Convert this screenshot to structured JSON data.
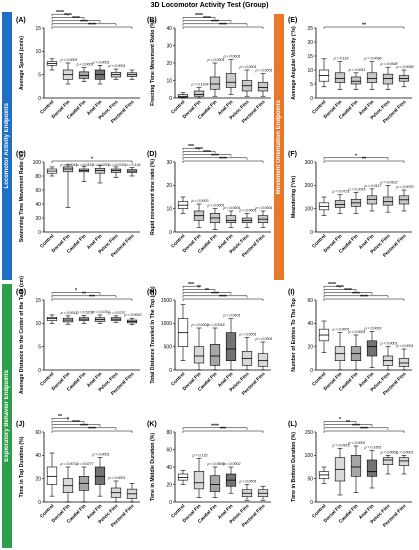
{
  "title": "3D Locomotor Activity Test (Group)",
  "sections": {
    "locomotor": {
      "label": "Locomotor Activity Endpoints",
      "color": "#1f6fc5"
    },
    "movement": {
      "label": "Movement Orientation Endpoints",
      "color": "#e8782a"
    },
    "exploratory": {
      "label": "Exploratory Behavior Endpoints",
      "color": "#2e9e4f"
    }
  },
  "categories": [
    "Control",
    "Dorsal Fin",
    "Caudal Fin",
    "Anal Fin",
    "Pelvic Fins",
    "Pectoral Fins"
  ],
  "chart_data": [
    {
      "id": "A",
      "type": "box",
      "panel_label": "(A)",
      "ylabel": "Average Speed (cm/s)",
      "ylim": [
        0,
        15
      ],
      "yticks": [
        0,
        5,
        10,
        15
      ],
      "plot": "box",
      "series": [
        {
          "whislo": 6,
          "q1": 7,
          "med": 7.4,
          "q3": 7.8,
          "whishi": 8.4
        },
        {
          "whislo": 3,
          "q1": 4,
          "med": 5,
          "q3": 6,
          "whishi": 7.5
        },
        {
          "whislo": 3.5,
          "q1": 4.2,
          "med": 4.8,
          "q3": 5.6,
          "whishi": 6.5
        },
        {
          "whislo": 3,
          "q1": 4,
          "med": 5,
          "q3": 6,
          "whishi": 7
        },
        {
          "whislo": 4,
          "q1": 4.5,
          "med": 5,
          "q3": 5.5,
          "whishi": 6.2
        },
        {
          "whislo": 4,
          "q1": 4.6,
          "med": 5,
          "q3": 5.4,
          "whishi": 6
        }
      ],
      "annotations": [
        "****",
        "****",
        "****",
        "****",
        "****",
        "p < 0.0001",
        "p < 0.0001",
        "p < 0.0001",
        "p < 0.0001"
      ]
    },
    {
      "id": "B",
      "type": "box",
      "panel_label": "(B)",
      "ylabel": "Freezing Time Movement Ratio (%)",
      "ylim": [
        0,
        40
      ],
      "yticks": [
        0,
        10,
        20,
        30,
        40
      ],
      "plot": "box",
      "series": [
        {
          "whislo": 0,
          "q1": 0.5,
          "med": 1,
          "q3": 2,
          "whishi": 3
        },
        {
          "whislo": 0,
          "q1": 1,
          "med": 2,
          "q3": 4,
          "whishi": 6
        },
        {
          "whislo": 1,
          "q1": 5,
          "med": 8,
          "q3": 12,
          "whishi": 20
        },
        {
          "whislo": 2,
          "q1": 6,
          "med": 9,
          "q3": 14,
          "whishi": 22
        },
        {
          "whislo": 1,
          "q1": 4,
          "med": 7,
          "q3": 10,
          "whishi": 16
        },
        {
          "whislo": 1,
          "q1": 4,
          "med": 6,
          "q3": 9,
          "whishi": 14
        }
      ],
      "annotations": [
        "****",
        "****",
        "****",
        "****",
        "p = 0.1334",
        "p < 0.0001",
        "p < 0.0001",
        "p < 0.0001",
        "p < 0.0001"
      ]
    },
    {
      "id": "C",
      "type": "box",
      "panel_label": "(C)",
      "ylabel": "Swimming Time Movement Ratio (%)",
      "ylim": [
        0,
        100
      ],
      "yticks": [
        0,
        20,
        40,
        60,
        80,
        100
      ],
      "plot": "box",
      "series": [
        {
          "whislo": 80,
          "q1": 84,
          "med": 87,
          "q3": 90,
          "whishi": 93
        },
        {
          "whislo": 35,
          "q1": 86,
          "med": 90,
          "q3": 93,
          "whishi": 96
        },
        {
          "whislo": 72,
          "q1": 86,
          "med": 88,
          "q3": 90,
          "whishi": 94
        },
        {
          "whislo": 70,
          "q1": 84,
          "med": 88,
          "q3": 91,
          "whishi": 95
        },
        {
          "whislo": 78,
          "q1": 85,
          "med": 88,
          "q3": 90,
          "whishi": 93
        },
        {
          "whislo": 80,
          "q1": 85,
          "med": 87,
          "q3": 89,
          "whishi": 92
        }
      ],
      "annotations": [
        "*",
        "p = 0.0041",
        "p = 0.0157",
        "p = 0.0357",
        "p = 0.0742",
        "p = 0.124"
      ]
    },
    {
      "id": "D",
      "type": "box",
      "panel_label": "(D)",
      "ylabel": "Rapid movement time ratio (%)",
      "ylim": [
        0,
        30
      ],
      "yticks": [
        0,
        10,
        20,
        30
      ],
      "plot": "box",
      "series": [
        {
          "whislo": 8,
          "q1": 10,
          "med": 11.5,
          "q3": 13,
          "whishi": 15
        },
        {
          "whislo": 2,
          "q1": 5,
          "med": 7,
          "q3": 9,
          "whishi": 12
        },
        {
          "whislo": 1,
          "q1": 4,
          "med": 6,
          "q3": 8,
          "whishi": 10
        },
        {
          "whislo": 2,
          "q1": 4,
          "med": 5,
          "q3": 7,
          "whishi": 9
        },
        {
          "whislo": 2,
          "q1": 4,
          "med": 5,
          "q3": 6,
          "whishi": 8
        },
        {
          "whislo": 2,
          "q1": 4,
          "med": 5.5,
          "q3": 7,
          "whishi": 9
        }
      ],
      "annotations": [
        "****",
        "****",
        "****",
        "****",
        "***",
        "p = 0.0003",
        "p < 0.0001",
        "p < 0.0001",
        "p < 0.0001",
        "p < 0.0001"
      ]
    },
    {
      "id": "E",
      "type": "box",
      "panel_label": "(E)",
      "ylabel": "Average Angular Velocity (°/s)",
      "ylim": [
        0,
        25
      ],
      "yticks": [
        0,
        5,
        10,
        15,
        20,
        25
      ],
      "plot": "box",
      "series": [
        {
          "whislo": 4,
          "q1": 6,
          "med": 8,
          "q3": 10,
          "whishi": 14
        },
        {
          "whislo": 3,
          "q1": 5.5,
          "med": 7,
          "q3": 9,
          "whishi": 13
        },
        {
          "whislo": 3,
          "q1": 5,
          "med": 6,
          "q3": 7.5,
          "whishi": 9
        },
        {
          "whislo": 3,
          "q1": 5.5,
          "med": 7,
          "q3": 9,
          "whishi": 13
        },
        {
          "whislo": 3,
          "q1": 5,
          "med": 7,
          "q3": 8.5,
          "whishi": 11
        },
        {
          "whislo": 4,
          "q1": 6,
          "med": 7,
          "q3": 8,
          "whishi": 10
        }
      ],
      "annotations": [
        "**",
        "p = 0.119",
        "p = 0.0011",
        "p = 0.0096",
        "p = 0.0548",
        "p = 0.0095"
      ]
    },
    {
      "id": "F",
      "type": "box",
      "panel_label": "(F)",
      "ylabel": "Meandering (°/m)",
      "ylim": [
        0,
        300
      ],
      "yticks": [
        0,
        100,
        200,
        300
      ],
      "plot": "box",
      "series": [
        {
          "whislo": 70,
          "q1": 95,
          "med": 110,
          "q3": 125,
          "whishi": 150
        },
        {
          "whislo": 80,
          "q1": 105,
          "med": 118,
          "q3": 135,
          "whishi": 160
        },
        {
          "whislo": 80,
          "q1": 110,
          "med": 125,
          "q3": 140,
          "whishi": 170
        },
        {
          "whislo": 90,
          "q1": 120,
          "med": 140,
          "q3": 155,
          "whishi": 185
        },
        {
          "whislo": 85,
          "q1": 115,
          "med": 130,
          "q3": 150,
          "whishi": 200
        },
        {
          "whislo": 90,
          "q1": 120,
          "med": 138,
          "q3": 155,
          "whishi": 180
        }
      ],
      "annotations": [
        "**",
        "*",
        "p = 0.0721",
        "p = 0.2016",
        "p = 0.0117",
        "p = 0.0422",
        "p = 0.0070"
      ]
    },
    {
      "id": "G",
      "type": "box",
      "panel_label": "(G)",
      "ylabel": "Average Distance to the Center of the Tank (cm)",
      "ylim": [
        0,
        15
      ],
      "yticks": [
        0,
        5,
        10,
        15
      ],
      "plot": "box",
      "series": [
        {
          "whislo": 10,
          "q1": 10.6,
          "med": 11,
          "q3": 11.3,
          "whishi": 11.8
        },
        {
          "whislo": 9.8,
          "q1": 10.3,
          "med": 10.7,
          "q3": 11.1,
          "whishi": 11.6
        },
        {
          "whislo": 10,
          "q1": 10.6,
          "med": 10.9,
          "q3": 11.2,
          "whishi": 11.7
        },
        {
          "whislo": 10,
          "q1": 10.4,
          "med": 10.8,
          "q3": 11.2,
          "whishi": 11.8
        },
        {
          "whislo": 10.2,
          "q1": 10.6,
          "med": 10.9,
          "q3": 11.2,
          "whishi": 11.6
        },
        {
          "whislo": 9.7,
          "q1": 10.1,
          "med": 10.4,
          "q3": 10.7,
          "whishi": 11.1
        }
      ],
      "annotations": [
        "***",
        "**",
        "*",
        "p = 0.0011",
        "p = 0.5201",
        "p = 0.1019",
        "p = 0.5737",
        "p = 0.0002"
      ]
    },
    {
      "id": "H",
      "type": "bar_range",
      "panel_label": "(H)",
      "ylabel": "Total Distance Traveled In The Top (cm)",
      "ylim": [
        0,
        1500
      ],
      "yticks": [
        0,
        500,
        1000,
        1500
      ],
      "plot": "box",
      "series": [
        {
          "whislo": 200,
          "q1": 500,
          "med": 800,
          "q3": 1100,
          "whishi": 1400
        },
        {
          "whislo": 0,
          "q1": 150,
          "med": 300,
          "q3": 500,
          "whishi": 900
        },
        {
          "whislo": 0,
          "q1": 100,
          "med": 300,
          "q3": 550,
          "whishi": 900
        },
        {
          "whislo": 0,
          "q1": 200,
          "med": 450,
          "q3": 800,
          "whishi": 1100
        },
        {
          "whislo": 0,
          "q1": 100,
          "med": 250,
          "q3": 400,
          "whishi": 700
        },
        {
          "whislo": 0,
          "q1": 80,
          "med": 200,
          "q3": 350,
          "whishi": 600
        }
      ],
      "annotations": [
        "****",
        "****",
        "**",
        "**",
        "***",
        "p = 0.0003",
        "p = 0.0018",
        "p = 0.0001",
        "p < 0.0001",
        "p < 0.0001"
      ]
    },
    {
      "id": "I",
      "type": "bar_range",
      "panel_label": "(I)",
      "ylabel": "Number of Entries To The Top",
      "ylim": [
        0,
        60
      ],
      "yticks": [
        0,
        20,
        40,
        60
      ],
      "plot": "box",
      "series": [
        {
          "whislo": 15,
          "q1": 25,
          "med": 30,
          "q3": 35,
          "whishi": 42
        },
        {
          "whislo": 0,
          "q1": 8,
          "med": 14,
          "q3": 20,
          "whishi": 32
        },
        {
          "whislo": 0,
          "q1": 8,
          "med": 14,
          "q3": 20,
          "whishi": 30
        },
        {
          "whislo": 2,
          "q1": 12,
          "med": 20,
          "q3": 25,
          "whishi": 33
        },
        {
          "whislo": 0,
          "q1": 4,
          "med": 8,
          "q3": 12,
          "whishi": 20
        },
        {
          "whislo": 0,
          "q1": 3,
          "med": 6,
          "q3": 10,
          "whishi": 18
        }
      ],
      "annotations": [
        "****",
        "****",
        "****",
        "****",
        "****",
        "p < 0.0001",
        "p < 0.0001",
        "p = 0.0003",
        "p < 0.0001",
        "p < 0.0001"
      ]
    },
    {
      "id": "J",
      "type": "bar_range",
      "panel_label": "(J)",
      "ylabel": "Time in Top Duration (%)",
      "ylim": [
        0,
        60
      ],
      "yticks": [
        0,
        20,
        40,
        60
      ],
      "plot": "box",
      "series": [
        {
          "whislo": 5,
          "q1": 15,
          "med": 22,
          "q3": 30,
          "whishi": 42
        },
        {
          "whislo": 0,
          "q1": 8,
          "med": 14,
          "q3": 20,
          "whishi": 30
        },
        {
          "whislo": 0,
          "q1": 10,
          "med": 16,
          "q3": 22,
          "whishi": 30
        },
        {
          "whislo": 5,
          "q1": 15,
          "med": 22,
          "q3": 30,
          "whishi": 38
        },
        {
          "whislo": 0,
          "q1": 4,
          "med": 8,
          "q3": 12,
          "whishi": 18
        },
        {
          "whislo": 0,
          "q1": 3,
          "med": 7,
          "q3": 11,
          "whishi": 16
        }
      ],
      "annotations": [
        "****",
        "****",
        "****",
        "*",
        "**",
        "p = 0.0073",
        "p = 0.0277",
        "p < 0.0001",
        "p < 0.0001"
      ]
    },
    {
      "id": "K",
      "type": "bar_range",
      "panel_label": "(K)",
      "ylabel": "Time in Middle Duration (%)",
      "ylim": [
        0,
        80
      ],
      "yticks": [
        0,
        20,
        40,
        60,
        80
      ],
      "plot": "box",
      "series": [
        {
          "whislo": 20,
          "q1": 25,
          "med": 28,
          "q3": 32,
          "whishi": 36
        },
        {
          "whislo": 5,
          "q1": 15,
          "med": 22,
          "q3": 35,
          "whishi": 50
        },
        {
          "whislo": 5,
          "q1": 12,
          "med": 20,
          "q3": 30,
          "whishi": 40
        },
        {
          "whislo": 10,
          "q1": 18,
          "med": 25,
          "q3": 32,
          "whishi": 40
        },
        {
          "whislo": 2,
          "q1": 6,
          "med": 10,
          "q3": 14,
          "whishi": 20
        },
        {
          "whislo": 2,
          "q1": 6,
          "med": 10,
          "q3": 14,
          "whishi": 18
        }
      ],
      "annotations": [
        "***",
        "****",
        "p = 0.132",
        "p = 0.5665",
        "p = 0.0002",
        "p < 0.0001"
      ]
    },
    {
      "id": "L",
      "type": "bar_range",
      "panel_label": "(L)",
      "ylabel": "Time in Bottom Duration (%)",
      "ylim": [
        0,
        150
      ],
      "yticks": [
        0,
        50,
        100,
        150
      ],
      "plot": "box",
      "series": [
        {
          "whislo": 40,
          "q1": 50,
          "med": 58,
          "q3": 65,
          "whishi": 75
        },
        {
          "whislo": 15,
          "q1": 45,
          "med": 70,
          "q3": 95,
          "whishi": 115
        },
        {
          "whislo": 20,
          "q1": 55,
          "med": 75,
          "q3": 100,
          "whishi": 120
        },
        {
          "whislo": 30,
          "q1": 55,
          "med": 65,
          "q3": 90,
          "whishi": 110
        },
        {
          "whislo": 60,
          "q1": 80,
          "med": 90,
          "q3": 95,
          "whishi": 100
        },
        {
          "whislo": 60,
          "q1": 78,
          "med": 88,
          "q3": 95,
          "whishi": 100
        }
      ],
      "annotations": [
        "****",
        "****",
        "**",
        "*",
        "p = 0.0415",
        "p < 0.0001",
        "p = 0.1601",
        "p < 0.0001",
        "p < 0.0001"
      ]
    }
  ],
  "colors": {
    "box_white": "#ffffff",
    "box_light": "#d9d9d9",
    "box_gray": "#a6a6a6",
    "box_dark": "#737373",
    "stroke": "#000000"
  }
}
